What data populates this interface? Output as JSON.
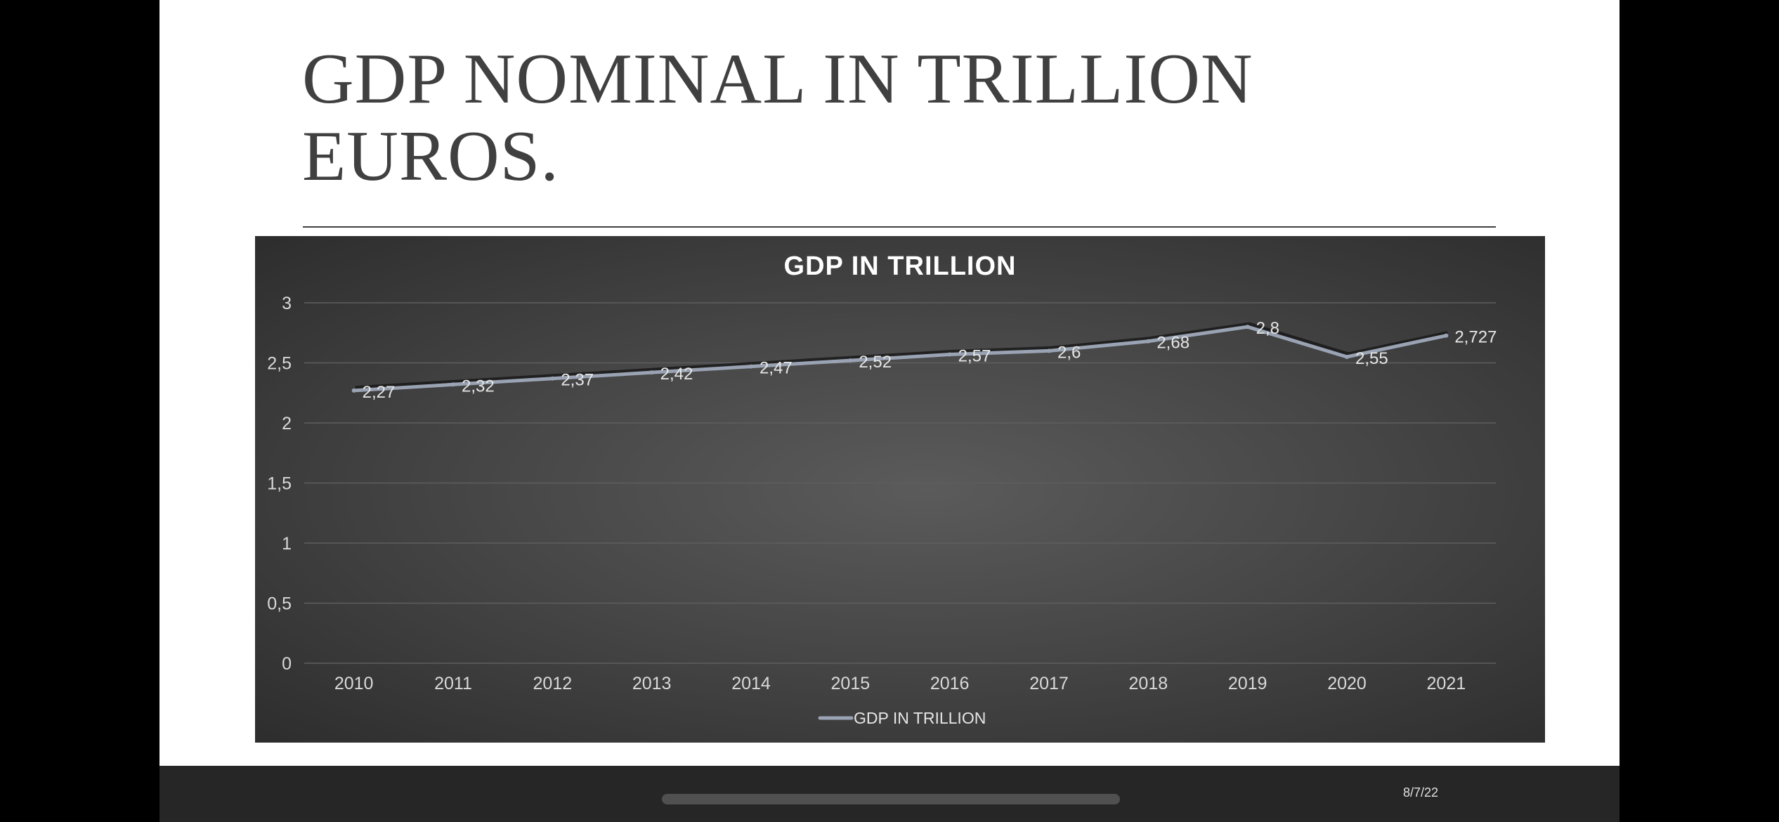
{
  "slide": {
    "title": "GDP NOMINAL IN TRILLION EUROS.",
    "date": "8/7/22"
  },
  "colors": {
    "line": "#9aa3b3",
    "shadow": "#1a1a1a",
    "grid": "#5e5e5e",
    "panel": "#474747"
  },
  "chart_data": {
    "type": "line",
    "title": "GDP IN TRILLION",
    "categories": [
      "2010",
      "2011",
      "2012",
      "2013",
      "2014",
      "2015",
      "2016",
      "2017",
      "2018",
      "2019",
      "2020",
      "2021"
    ],
    "series": [
      {
        "name": "GDP IN TRILLION",
        "values": [
          2.27,
          2.32,
          2.37,
          2.42,
          2.47,
          2.52,
          2.57,
          2.6,
          2.68,
          2.8,
          2.55,
          2.727
        ],
        "labels": [
          "2,27",
          "2,32",
          "2,37",
          "2,42",
          "2,47",
          "2,52",
          "2,57",
          "2,6",
          "2,68",
          "2,8",
          "2,55",
          "2,727"
        ]
      }
    ],
    "ylim": [
      0,
      3
    ],
    "yticks": [
      0,
      0.5,
      1,
      1.5,
      2,
      2.5,
      3
    ],
    "ytick_labels": [
      "0",
      "0,5",
      "1",
      "1,5",
      "2",
      "2,5",
      "3"
    ],
    "grid": true,
    "legend": "bottom"
  }
}
